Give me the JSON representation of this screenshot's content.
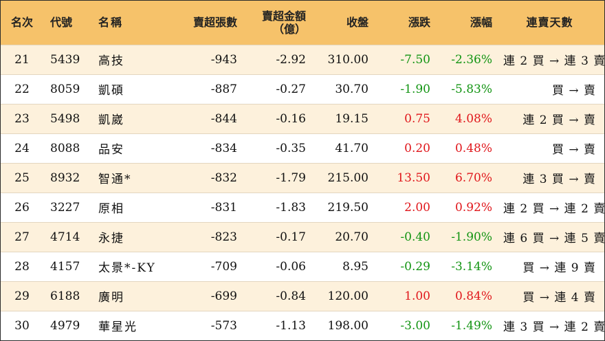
{
  "columns": {
    "rank": "名次",
    "code": "代號",
    "name": "名稱",
    "sell_shares": "賣超張數",
    "sell_amount_line1": "賣超金額",
    "sell_amount_line2": "（億）",
    "close": "收盤",
    "change": "漲跌",
    "change_pct": "漲幅",
    "streak": "連賣天數"
  },
  "colors": {
    "header_bg": "#f6c26a",
    "row_alt_bg": "#fdf1dc",
    "up": "#e0161b",
    "down": "#129412"
  },
  "rows": [
    {
      "rank": "21",
      "code": "5439",
      "name": "高技",
      "shares": "-943",
      "amount": "-2.92",
      "close": "310.00",
      "change": "-7.50",
      "pct": "-2.36%",
      "streak": "連 2 買 → 連 3 賣",
      "dir": "neg"
    },
    {
      "rank": "22",
      "code": "8059",
      "name": "凱碩",
      "shares": "-887",
      "amount": "-0.27",
      "close": "30.70",
      "change": "-1.90",
      "pct": "-5.83%",
      "streak": "買 → 賣",
      "dir": "neg"
    },
    {
      "rank": "23",
      "code": "5498",
      "name": "凱崴",
      "shares": "-844",
      "amount": "-0.16",
      "close": "19.15",
      "change": "0.75",
      "pct": "4.08%",
      "streak": "連 2 買 → 賣",
      "dir": "pos"
    },
    {
      "rank": "24",
      "code": "8088",
      "name": "品安",
      "shares": "-834",
      "amount": "-0.35",
      "close": "41.70",
      "change": "0.20",
      "pct": "0.48%",
      "streak": "買 → 賣",
      "dir": "pos"
    },
    {
      "rank": "25",
      "code": "8932",
      "name": "智通*",
      "shares": "-832",
      "amount": "-1.79",
      "close": "215.00",
      "change": "13.50",
      "pct": "6.70%",
      "streak": "連 3 買 → 賣",
      "dir": "pos"
    },
    {
      "rank": "26",
      "code": "3227",
      "name": "原相",
      "shares": "-831",
      "amount": "-1.83",
      "close": "219.50",
      "change": "2.00",
      "pct": "0.92%",
      "streak": "連 2 買 → 連 2 賣",
      "dir": "pos"
    },
    {
      "rank": "27",
      "code": "4714",
      "name": "永捷",
      "shares": "-823",
      "amount": "-0.17",
      "close": "20.70",
      "change": "-0.40",
      "pct": "-1.90%",
      "streak": "連 6 買 → 連 5 賣",
      "dir": "neg"
    },
    {
      "rank": "28",
      "code": "4157",
      "name": "太景*-KY",
      "shares": "-709",
      "amount": "-0.06",
      "close": "8.95",
      "change": "-0.29",
      "pct": "-3.14%",
      "streak": "買 → 連 9 賣",
      "dir": "neg"
    },
    {
      "rank": "29",
      "code": "6188",
      "name": "廣明",
      "shares": "-699",
      "amount": "-0.84",
      "close": "120.00",
      "change": "1.00",
      "pct": "0.84%",
      "streak": "買 → 連 4 賣",
      "dir": "pos"
    },
    {
      "rank": "30",
      "code": "4979",
      "name": "華星光",
      "shares": "-573",
      "amount": "-1.13",
      "close": "198.00",
      "change": "-3.00",
      "pct": "-1.49%",
      "streak": "連 3 買 → 連 2 賣",
      "dir": "neg"
    }
  ]
}
